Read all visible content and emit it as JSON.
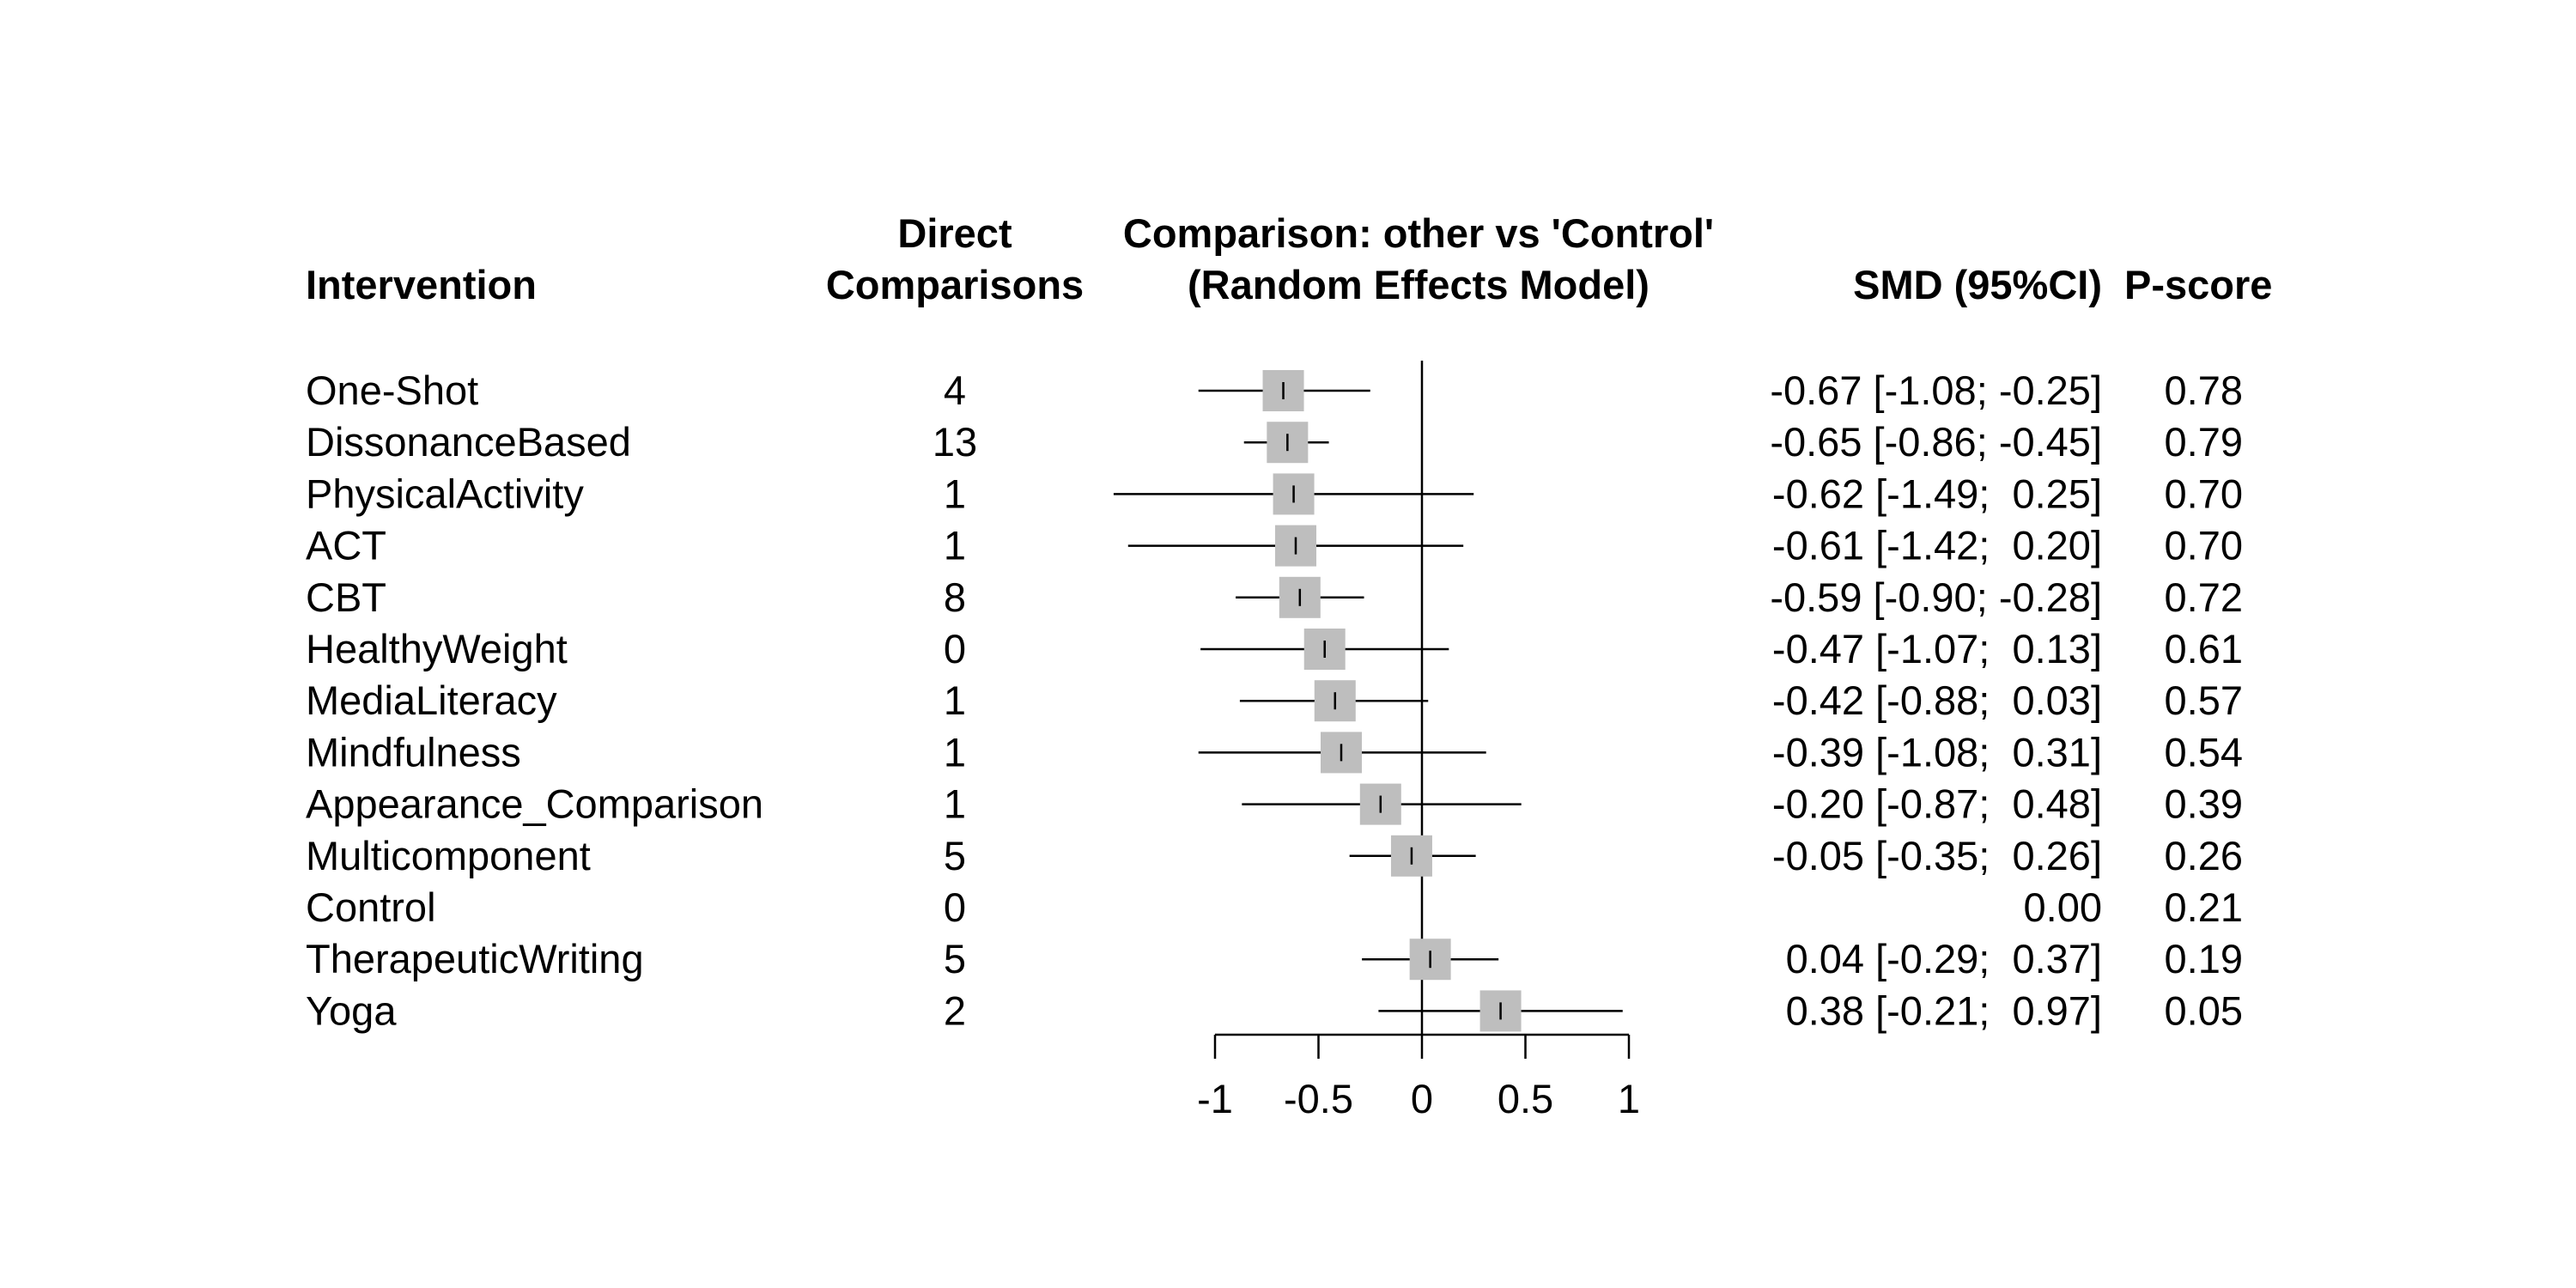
{
  "chart_data": {
    "type": "forest",
    "headers": {
      "intervention": "Intervention",
      "direct_line1": "Direct",
      "direct_line2": "Comparisons",
      "plot_line1": "Comparison: other vs 'Control'",
      "plot_line2": "(Random Effects Model)",
      "smd": "SMD (95%CI)",
      "pscore": "P-score"
    },
    "xlim": [
      -1,
      1
    ],
    "xticks": [
      -1,
      -0.5,
      0,
      0.5,
      1
    ],
    "xtick_labels": [
      "-1",
      "-0.5",
      "0",
      "0.5",
      "1"
    ],
    "reference_line": 0,
    "marker_color": "#bebebe",
    "rows": [
      {
        "name": "One-Shot",
        "direct": "4",
        "smd": -0.67,
        "lower": -1.08,
        "upper": -0.25,
        "ci_text": "-0.67 [-1.08; -0.25]",
        "pscore": "0.78"
      },
      {
        "name": "DissonanceBased",
        "direct": "13",
        "smd": -0.65,
        "lower": -0.86,
        "upper": -0.45,
        "ci_text": "-0.65 [-0.86; -0.45]",
        "pscore": "0.79"
      },
      {
        "name": "PhysicalActivity",
        "direct": "1",
        "smd": -0.62,
        "lower": -1.49,
        "upper": 0.25,
        "ci_text": "-0.62 [-1.49;  0.25]",
        "pscore": "0.70"
      },
      {
        "name": "ACT",
        "direct": "1",
        "smd": -0.61,
        "lower": -1.42,
        "upper": 0.2,
        "ci_text": "-0.61 [-1.42;  0.20]",
        "pscore": "0.70"
      },
      {
        "name": "CBT",
        "direct": "8",
        "smd": -0.59,
        "lower": -0.9,
        "upper": -0.28,
        "ci_text": "-0.59 [-0.90; -0.28]",
        "pscore": "0.72"
      },
      {
        "name": "HealthyWeight",
        "direct": "0",
        "smd": -0.47,
        "lower": -1.07,
        "upper": 0.13,
        "ci_text": "-0.47 [-1.07;  0.13]",
        "pscore": "0.61"
      },
      {
        "name": "MediaLiteracy",
        "direct": "1",
        "smd": -0.42,
        "lower": -0.88,
        "upper": 0.03,
        "ci_text": "-0.42 [-0.88;  0.03]",
        "pscore": "0.57"
      },
      {
        "name": "Mindfulness",
        "direct": "1",
        "smd": -0.39,
        "lower": -1.08,
        "upper": 0.31,
        "ci_text": "-0.39 [-1.08;  0.31]",
        "pscore": "0.54"
      },
      {
        "name": "Appearance_Comparison",
        "direct": "1",
        "smd": -0.2,
        "lower": -0.87,
        "upper": 0.48,
        "ci_text": "-0.20 [-0.87;  0.48]",
        "pscore": "0.39"
      },
      {
        "name": "Multicomponent",
        "direct": "5",
        "smd": -0.05,
        "lower": -0.35,
        "upper": 0.26,
        "ci_text": "-0.05 [-0.35;  0.26]",
        "pscore": "0.26"
      },
      {
        "name": "Control",
        "direct": "0",
        "smd": null,
        "lower": null,
        "upper": null,
        "ci_text": "0.00",
        "pscore": "0.21"
      },
      {
        "name": "TherapeuticWriting",
        "direct": "5",
        "smd": 0.04,
        "lower": -0.29,
        "upper": 0.37,
        "ci_text": "0.04 [-0.29;  0.37]",
        "pscore": "0.19"
      },
      {
        "name": "Yoga",
        "direct": "2",
        "smd": 0.38,
        "lower": -0.21,
        "upper": 0.97,
        "ci_text": "0.38 [-0.21;  0.97]",
        "pscore": "0.05"
      }
    ]
  }
}
